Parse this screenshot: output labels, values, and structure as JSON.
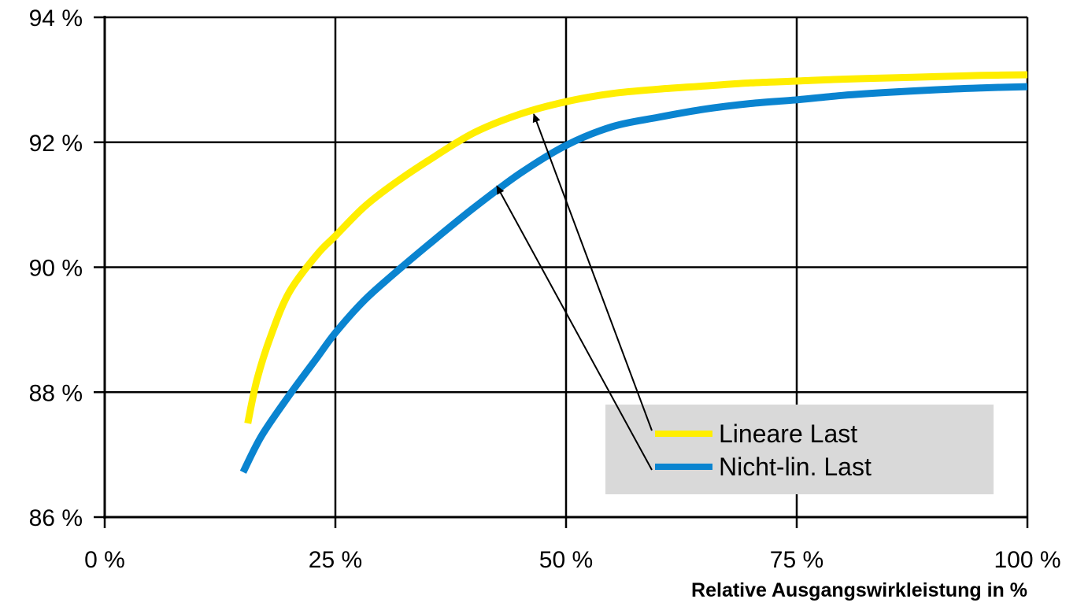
{
  "chart_data": {
    "type": "line",
    "title": "",
    "xlabel": "Relative Ausgangswirkleistung in %",
    "ylabel": "",
    "xlim": [
      0,
      100
    ],
    "ylim": [
      86,
      94
    ],
    "x_ticks": [
      0,
      25,
      50,
      75,
      100
    ],
    "x_tick_labels": [
      "0 %",
      "25 %",
      "50 %",
      "75 %",
      "100 %"
    ],
    "y_ticks": [
      86,
      88,
      90,
      92,
      94
    ],
    "y_tick_labels": [
      "86 %",
      "88 %",
      "90 %",
      "92 %",
      "94 %"
    ],
    "grid": true,
    "legend_position": "bottom-right",
    "series": [
      {
        "name": "Lineare Last",
        "color": "#FFEE00",
        "points": [
          [
            15.5,
            87.5
          ],
          [
            16.5,
            88.2
          ],
          [
            18,
            88.9
          ],
          [
            20,
            89.6
          ],
          [
            23,
            90.2
          ],
          [
            25,
            90.5
          ],
          [
            28,
            90.95
          ],
          [
            31,
            91.3
          ],
          [
            35,
            91.7
          ],
          [
            40,
            92.15
          ],
          [
            45,
            92.45
          ],
          [
            50,
            92.65
          ],
          [
            55,
            92.78
          ],
          [
            60,
            92.85
          ],
          [
            65,
            92.9
          ],
          [
            70,
            92.95
          ],
          [
            75,
            92.98
          ],
          [
            80,
            93.01
          ],
          [
            85,
            93.03
          ],
          [
            90,
            93.05
          ],
          [
            95,
            93.07
          ],
          [
            100,
            93.08
          ]
        ]
      },
      {
        "name": "Nicht-lin. Last",
        "color": "#0A84D0",
        "points": [
          [
            15,
            86.72
          ],
          [
            17,
            87.3
          ],
          [
            20,
            87.95
          ],
          [
            23,
            88.55
          ],
          [
            25,
            88.95
          ],
          [
            28,
            89.45
          ],
          [
            31,
            89.85
          ],
          [
            35,
            90.35
          ],
          [
            40,
            90.95
          ],
          [
            45,
            91.5
          ],
          [
            50,
            91.95
          ],
          [
            55,
            92.25
          ],
          [
            60,
            92.4
          ],
          [
            65,
            92.53
          ],
          [
            70,
            92.62
          ],
          [
            75,
            92.68
          ],
          [
            80,
            92.75
          ],
          [
            85,
            92.8
          ],
          [
            90,
            92.84
          ],
          [
            95,
            92.87
          ],
          [
            100,
            92.89
          ]
        ]
      }
    ],
    "annotations": [
      {
        "label": "Lineare Last",
        "arrow_from": "legend-entry",
        "arrow_to": [
          46.5,
          92.45
        ]
      },
      {
        "label": "Nicht-lin. Last",
        "arrow_from": "legend-entry",
        "arrow_to": [
          42.5,
          91.3
        ]
      }
    ]
  }
}
